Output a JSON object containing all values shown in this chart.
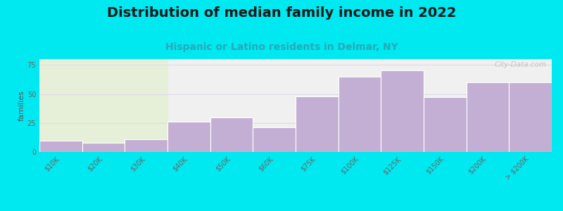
{
  "title": "Distribution of median family income in 2022",
  "subtitle": "Hispanic or Latino residents in Delmar, NY",
  "ylabel": "families",
  "categories": [
    "$10K",
    "$20K",
    "$30K",
    "$40K",
    "$50K",
    "$60K",
    "$75K",
    "$100K",
    "$125K",
    "$150K",
    "$200K",
    "> $200K"
  ],
  "values": [
    10,
    8,
    11,
    26,
    30,
    21,
    48,
    65,
    70,
    47,
    60,
    60
  ],
  "bar_color": "#c4afd4",
  "bar_edge_color": "#ffffff",
  "background_color": "#00e8f0",
  "plot_bg_left_color": "#e6f0d8",
  "plot_bg_right_color": "#f0f0f0",
  "grid_color": "#e0d8e8",
  "ylim": [
    0,
    80
  ],
  "yticks": [
    0,
    25,
    50,
    75
  ],
  "title_fontsize": 14,
  "subtitle_fontsize": 10,
  "ylabel_fontsize": 8,
  "tick_fontsize": 7,
  "watermark": "City-Data.com",
  "green_bg_split": 3
}
